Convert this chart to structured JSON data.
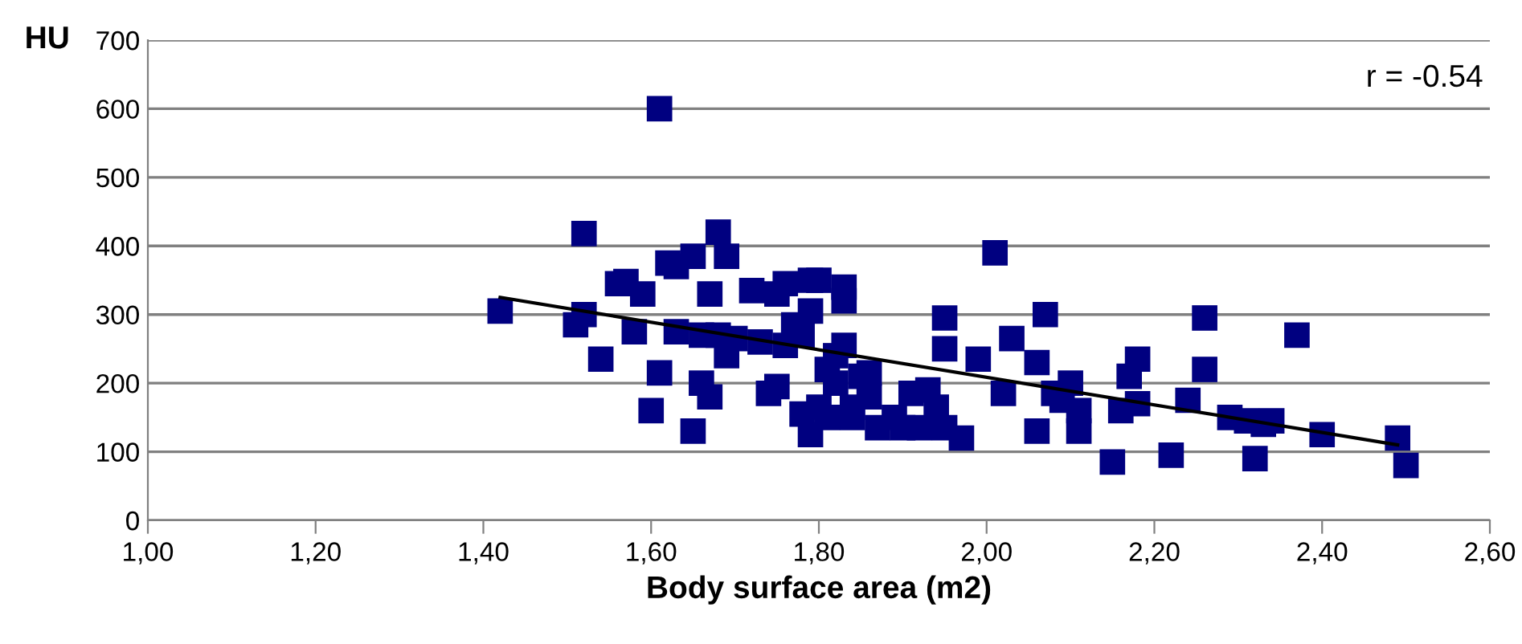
{
  "chart_data": {
    "type": "scatter",
    "xlabel": "Body surface area (m2)",
    "ylabel": "HU",
    "annotations": [
      "r = -0.54"
    ],
    "grid": "y",
    "legend": false,
    "xlim": [
      1.0,
      2.6
    ],
    "xticks": [
      {
        "value": 1.0,
        "label": "1,00"
      },
      {
        "value": 1.2,
        "label": "1,20"
      },
      {
        "value": 1.4,
        "label": "1,40"
      },
      {
        "value": 1.6,
        "label": "1,60"
      },
      {
        "value": 1.8,
        "label": "1,80"
      },
      {
        "value": 2.0,
        "label": "2,00"
      },
      {
        "value": 2.2,
        "label": "2,20"
      },
      {
        "value": 2.4,
        "label": "2,40"
      },
      {
        "value": 2.6,
        "label": "2,60"
      }
    ],
    "ylim": [
      0,
      700
    ],
    "yticks": [
      0,
      100,
      200,
      300,
      400,
      500,
      600,
      700
    ],
    "series": [
      {
        "color": "#000080",
        "marker": "square",
        "x": [
          1.42,
          1.51,
          1.52,
          1.52,
          1.54,
          1.56,
          1.57,
          1.58,
          1.59,
          1.6,
          1.61,
          1.61,
          1.62,
          1.63,
          1.63,
          1.65,
          1.65,
          1.66,
          1.66,
          1.67,
          1.67,
          1.68,
          1.68,
          1.69,
          1.69,
          1.7,
          1.72,
          1.73,
          1.74,
          1.75,
          1.75,
          1.76,
          1.76,
          1.77,
          1.78,
          1.78,
          1.79,
          1.79,
          1.79,
          1.8,
          1.8,
          1.81,
          1.81,
          1.82,
          1.82,
          1.83,
          1.83,
          1.83,
          1.84,
          1.84,
          1.85,
          1.86,
          1.86,
          1.87,
          1.89,
          1.9,
          1.91,
          1.92,
          1.93,
          1.94,
          1.95,
          1.95,
          1.95,
          1.97,
          1.99,
          2.01,
          2.02,
          2.03,
          2.06,
          2.06,
          2.07,
          2.08,
          2.09,
          2.1,
          2.11,
          2.11,
          2.15,
          2.16,
          2.17,
          2.18,
          2.18,
          2.22,
          2.24,
          2.26,
          2.26,
          2.29,
          2.31,
          2.32,
          2.33,
          2.34,
          2.37,
          2.4,
          2.49,
          2.5
        ],
        "values": [
          305,
          285,
          300,
          418,
          235,
          345,
          348,
          275,
          330,
          160,
          215,
          600,
          375,
          275,
          370,
          130,
          385,
          270,
          200,
          330,
          180,
          420,
          270,
          240,
          385,
          265,
          335,
          260,
          185,
          195,
          330,
          345,
          255,
          285,
          270,
          155,
          350,
          305,
          125,
          165,
          350,
          220,
          150,
          200,
          240,
          340,
          320,
          255,
          165,
          150,
          210,
          180,
          215,
          135,
          150,
          135,
          185,
          135,
          190,
          165,
          135,
          295,
          250,
          120,
          235,
          390,
          185,
          265,
          130,
          230,
          300,
          185,
          175,
          200,
          130,
          160,
          85,
          160,
          210,
          235,
          170,
          95,
          175,
          220,
          295,
          150,
          145,
          90,
          140,
          145,
          270,
          125,
          120,
          80
        ]
      },
      {
        "type": "line",
        "color": "#000000",
        "marker": "none",
        "x": [
          1.42,
          2.49
        ],
        "values": [
          325,
          110
        ]
      }
    ]
  }
}
